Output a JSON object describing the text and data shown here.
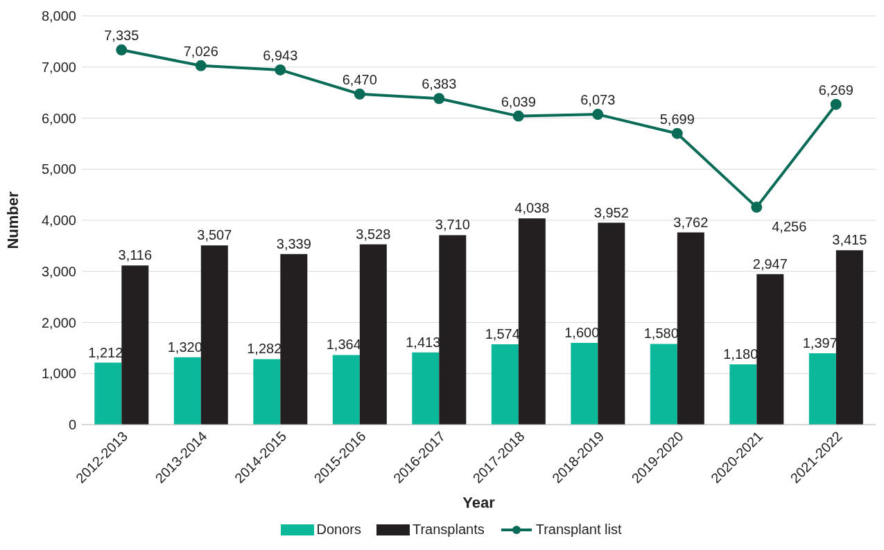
{
  "chart_data": {
    "type": "bar",
    "xlabel": "Year",
    "ylabel": "Number",
    "categories": [
      "2012-2013",
      "2013-2014",
      "2014-2015",
      "2015-2016",
      "2016-2017",
      "2017-2018",
      "2018-2019",
      "2019-2020",
      "2020-2021",
      "2021-2022"
    ],
    "series": [
      {
        "name": "Donors",
        "color": "#0cb89a",
        "values": [
          1212,
          1320,
          1282,
          1364,
          1413,
          1574,
          1600,
          1580,
          1180,
          1397
        ],
        "value_labels": [
          "1,212",
          "1,320",
          "1,282",
          "1,364",
          "1,413",
          "1,574",
          "1,600",
          "1,580",
          "1,180",
          "1,397"
        ]
      },
      {
        "name": "Transplants",
        "color": "#231f20",
        "values": [
          3116,
          3507,
          3339,
          3528,
          3710,
          4038,
          3952,
          3762,
          2947,
          3415
        ],
        "value_labels": [
          "3,116",
          "3,507",
          "3,339",
          "3,528",
          "3,710",
          "4,038",
          "3,952",
          "3,762",
          "2,947",
          "3,415"
        ]
      },
      {
        "name": "Transplant list",
        "type": "line",
        "color": "#0a6b57",
        "values": [
          7335,
          7026,
          6943,
          6470,
          6383,
          6039,
          6073,
          5699,
          4256,
          6269
        ],
        "value_labels": [
          "7,335",
          "7,026",
          "6,943",
          "6,470",
          "6,383",
          "6,039",
          "6,073",
          "5,699",
          "4,256",
          "6,269"
        ]
      }
    ],
    "ylim": [
      0,
      8000
    ],
    "yticks": [
      {
        "value": 0,
        "label": "0"
      },
      {
        "value": 1000,
        "label": "1,000"
      },
      {
        "value": 2000,
        "label": "2,000"
      },
      {
        "value": 3000,
        "label": "3,000"
      },
      {
        "value": 4000,
        "label": "4,000"
      },
      {
        "value": 5000,
        "label": "5,000"
      },
      {
        "value": 6000,
        "label": "6,000"
      },
      {
        "value": 7000,
        "label": "7,000"
      },
      {
        "value": 8000,
        "label": "8,000"
      }
    ],
    "grid": "y",
    "legend": "bottom",
    "marker": "circle"
  }
}
